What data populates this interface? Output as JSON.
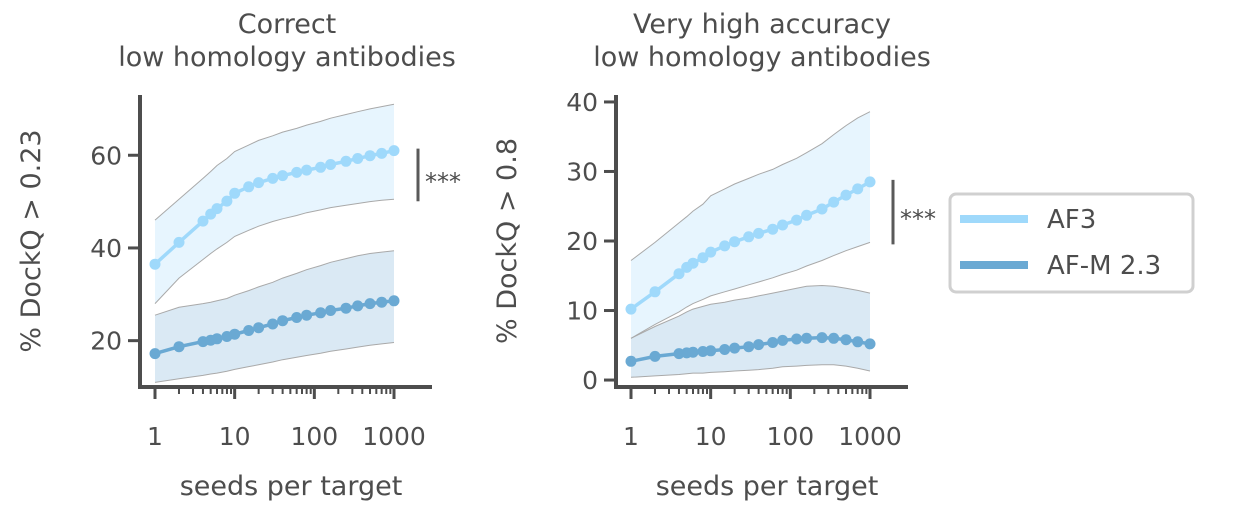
{
  "legend": {
    "entries": [
      {
        "label": "AF3",
        "color": "#9fd9fb"
      },
      {
        "label": "AF-M 2.3",
        "color": "#6aa9d3"
      }
    ],
    "placement": "right"
  },
  "chart_data": [
    {
      "type": "line",
      "title": "Correct\nlow homology antibodies",
      "xlabel": "seeds per target",
      "ylabel": "% DockQ > 0.23",
      "xscale": "log",
      "xlim": [
        0.8,
        1600
      ],
      "ylim": [
        10,
        73
      ],
      "xticks": [
        1,
        10,
        100,
        1000
      ],
      "xtick_labels": [
        "1",
        "10",
        "100",
        "1000"
      ],
      "yticks": [
        20,
        40,
        60
      ],
      "ytick_labels": [
        "20",
        "40",
        "60"
      ],
      "grid": false,
      "x": [
        1,
        2,
        4,
        5,
        6,
        8,
        10,
        15,
        20,
        30,
        40,
        60,
        80,
        120,
        160,
        250,
        350,
        500,
        700,
        1000
      ],
      "series": [
        {
          "name": "AF3",
          "values": [
            36.5,
            41.2,
            45.8,
            47.3,
            48.5,
            50.1,
            51.8,
            53.2,
            54.1,
            55.0,
            55.6,
            56.3,
            56.8,
            57.4,
            58.0,
            58.7,
            59.3,
            59.9,
            60.4,
            61.0
          ],
          "lower": [
            28.0,
            33.5,
            37.5,
            38.8,
            39.8,
            41.2,
            42.5,
            43.8,
            44.7,
            45.7,
            46.3,
            47.0,
            47.6,
            48.2,
            48.7,
            49.2,
            49.6,
            50.0,
            50.3,
            50.5
          ],
          "upper": [
            46.0,
            50.5,
            55.0,
            56.5,
            57.8,
            59.3,
            60.8,
            62.2,
            63.2,
            64.2,
            65.0,
            65.8,
            66.5,
            67.3,
            68.0,
            68.8,
            69.4,
            70.0,
            70.5,
            71.0
          ]
        },
        {
          "name": "AF-M 2.3",
          "values": [
            17.2,
            18.7,
            19.8,
            20.1,
            20.4,
            20.9,
            21.4,
            22.2,
            22.8,
            23.6,
            24.3,
            25.0,
            25.5,
            26.0,
            26.5,
            27.0,
            27.5,
            28.0,
            28.3,
            28.6
          ],
          "lower": [
            11.0,
            11.8,
            12.5,
            12.8,
            13.0,
            13.4,
            13.8,
            14.4,
            14.8,
            15.4,
            15.9,
            16.4,
            16.8,
            17.3,
            17.7,
            18.2,
            18.6,
            19.0,
            19.3,
            19.6
          ],
          "upper": [
            25.5,
            27.2,
            28.0,
            28.3,
            28.6,
            29.1,
            29.8,
            30.8,
            31.6,
            32.6,
            33.5,
            34.5,
            35.3,
            36.2,
            36.9,
            37.7,
            38.3,
            38.8,
            39.1,
            39.4
          ]
        }
      ],
      "significance": "***"
    },
    {
      "type": "line",
      "title": "Very high accuracy\nlow homology antibodies",
      "xlabel": "seeds per target",
      "ylabel": "% DockQ > 0.8",
      "xscale": "log",
      "xlim": [
        0.8,
        1600
      ],
      "ylim": [
        -1,
        41
      ],
      "xticks": [
        1,
        10,
        100,
        1000
      ],
      "xtick_labels": [
        "1",
        "10",
        "100",
        "1000"
      ],
      "yticks": [
        0,
        10,
        20,
        30,
        40
      ],
      "ytick_labels": [
        "0",
        "10",
        "20",
        "30",
        "40"
      ],
      "grid": false,
      "x": [
        1,
        2,
        4,
        5,
        6,
        8,
        10,
        15,
        20,
        30,
        40,
        60,
        80,
        120,
        160,
        250,
        350,
        500,
        700,
        1000
      ],
      "series": [
        {
          "name": "AF3",
          "values": [
            10.2,
            12.7,
            15.3,
            16.2,
            16.8,
            17.6,
            18.4,
            19.3,
            19.9,
            20.6,
            21.1,
            21.7,
            22.3,
            23.0,
            23.7,
            24.6,
            25.6,
            26.6,
            27.5,
            28.5
          ],
          "lower": [
            6.0,
            8.0,
            9.8,
            10.5,
            11.0,
            11.6,
            12.1,
            12.7,
            13.1,
            13.7,
            14.1,
            14.7,
            15.2,
            15.8,
            16.4,
            17.2,
            17.9,
            18.6,
            19.2,
            19.8
          ],
          "upper": [
            17.2,
            19.8,
            22.6,
            23.5,
            24.3,
            25.3,
            26.5,
            27.5,
            28.2,
            29.0,
            29.6,
            30.3,
            31.0,
            31.9,
            32.7,
            34.0,
            35.3,
            36.6,
            37.7,
            38.6
          ]
        },
        {
          "name": "AF-M 2.3",
          "values": [
            2.7,
            3.4,
            3.8,
            3.9,
            4.0,
            4.1,
            4.2,
            4.4,
            4.6,
            4.8,
            5.1,
            5.4,
            5.7,
            5.9,
            6.0,
            6.1,
            6.0,
            5.8,
            5.5,
            5.2
          ],
          "lower": [
            0.4,
            0.6,
            0.8,
            0.9,
            1.0,
            1.0,
            1.1,
            1.2,
            1.3,
            1.4,
            1.5,
            1.7,
            1.9,
            2.0,
            2.1,
            2.2,
            2.2,
            2.0,
            1.7,
            1.3
          ],
          "upper": [
            6.0,
            7.7,
            9.2,
            9.8,
            10.2,
            10.6,
            10.9,
            11.2,
            11.5,
            11.8,
            12.1,
            12.5,
            12.8,
            13.2,
            13.5,
            13.6,
            13.5,
            13.2,
            12.9,
            12.5
          ]
        }
      ],
      "significance": "***"
    }
  ]
}
